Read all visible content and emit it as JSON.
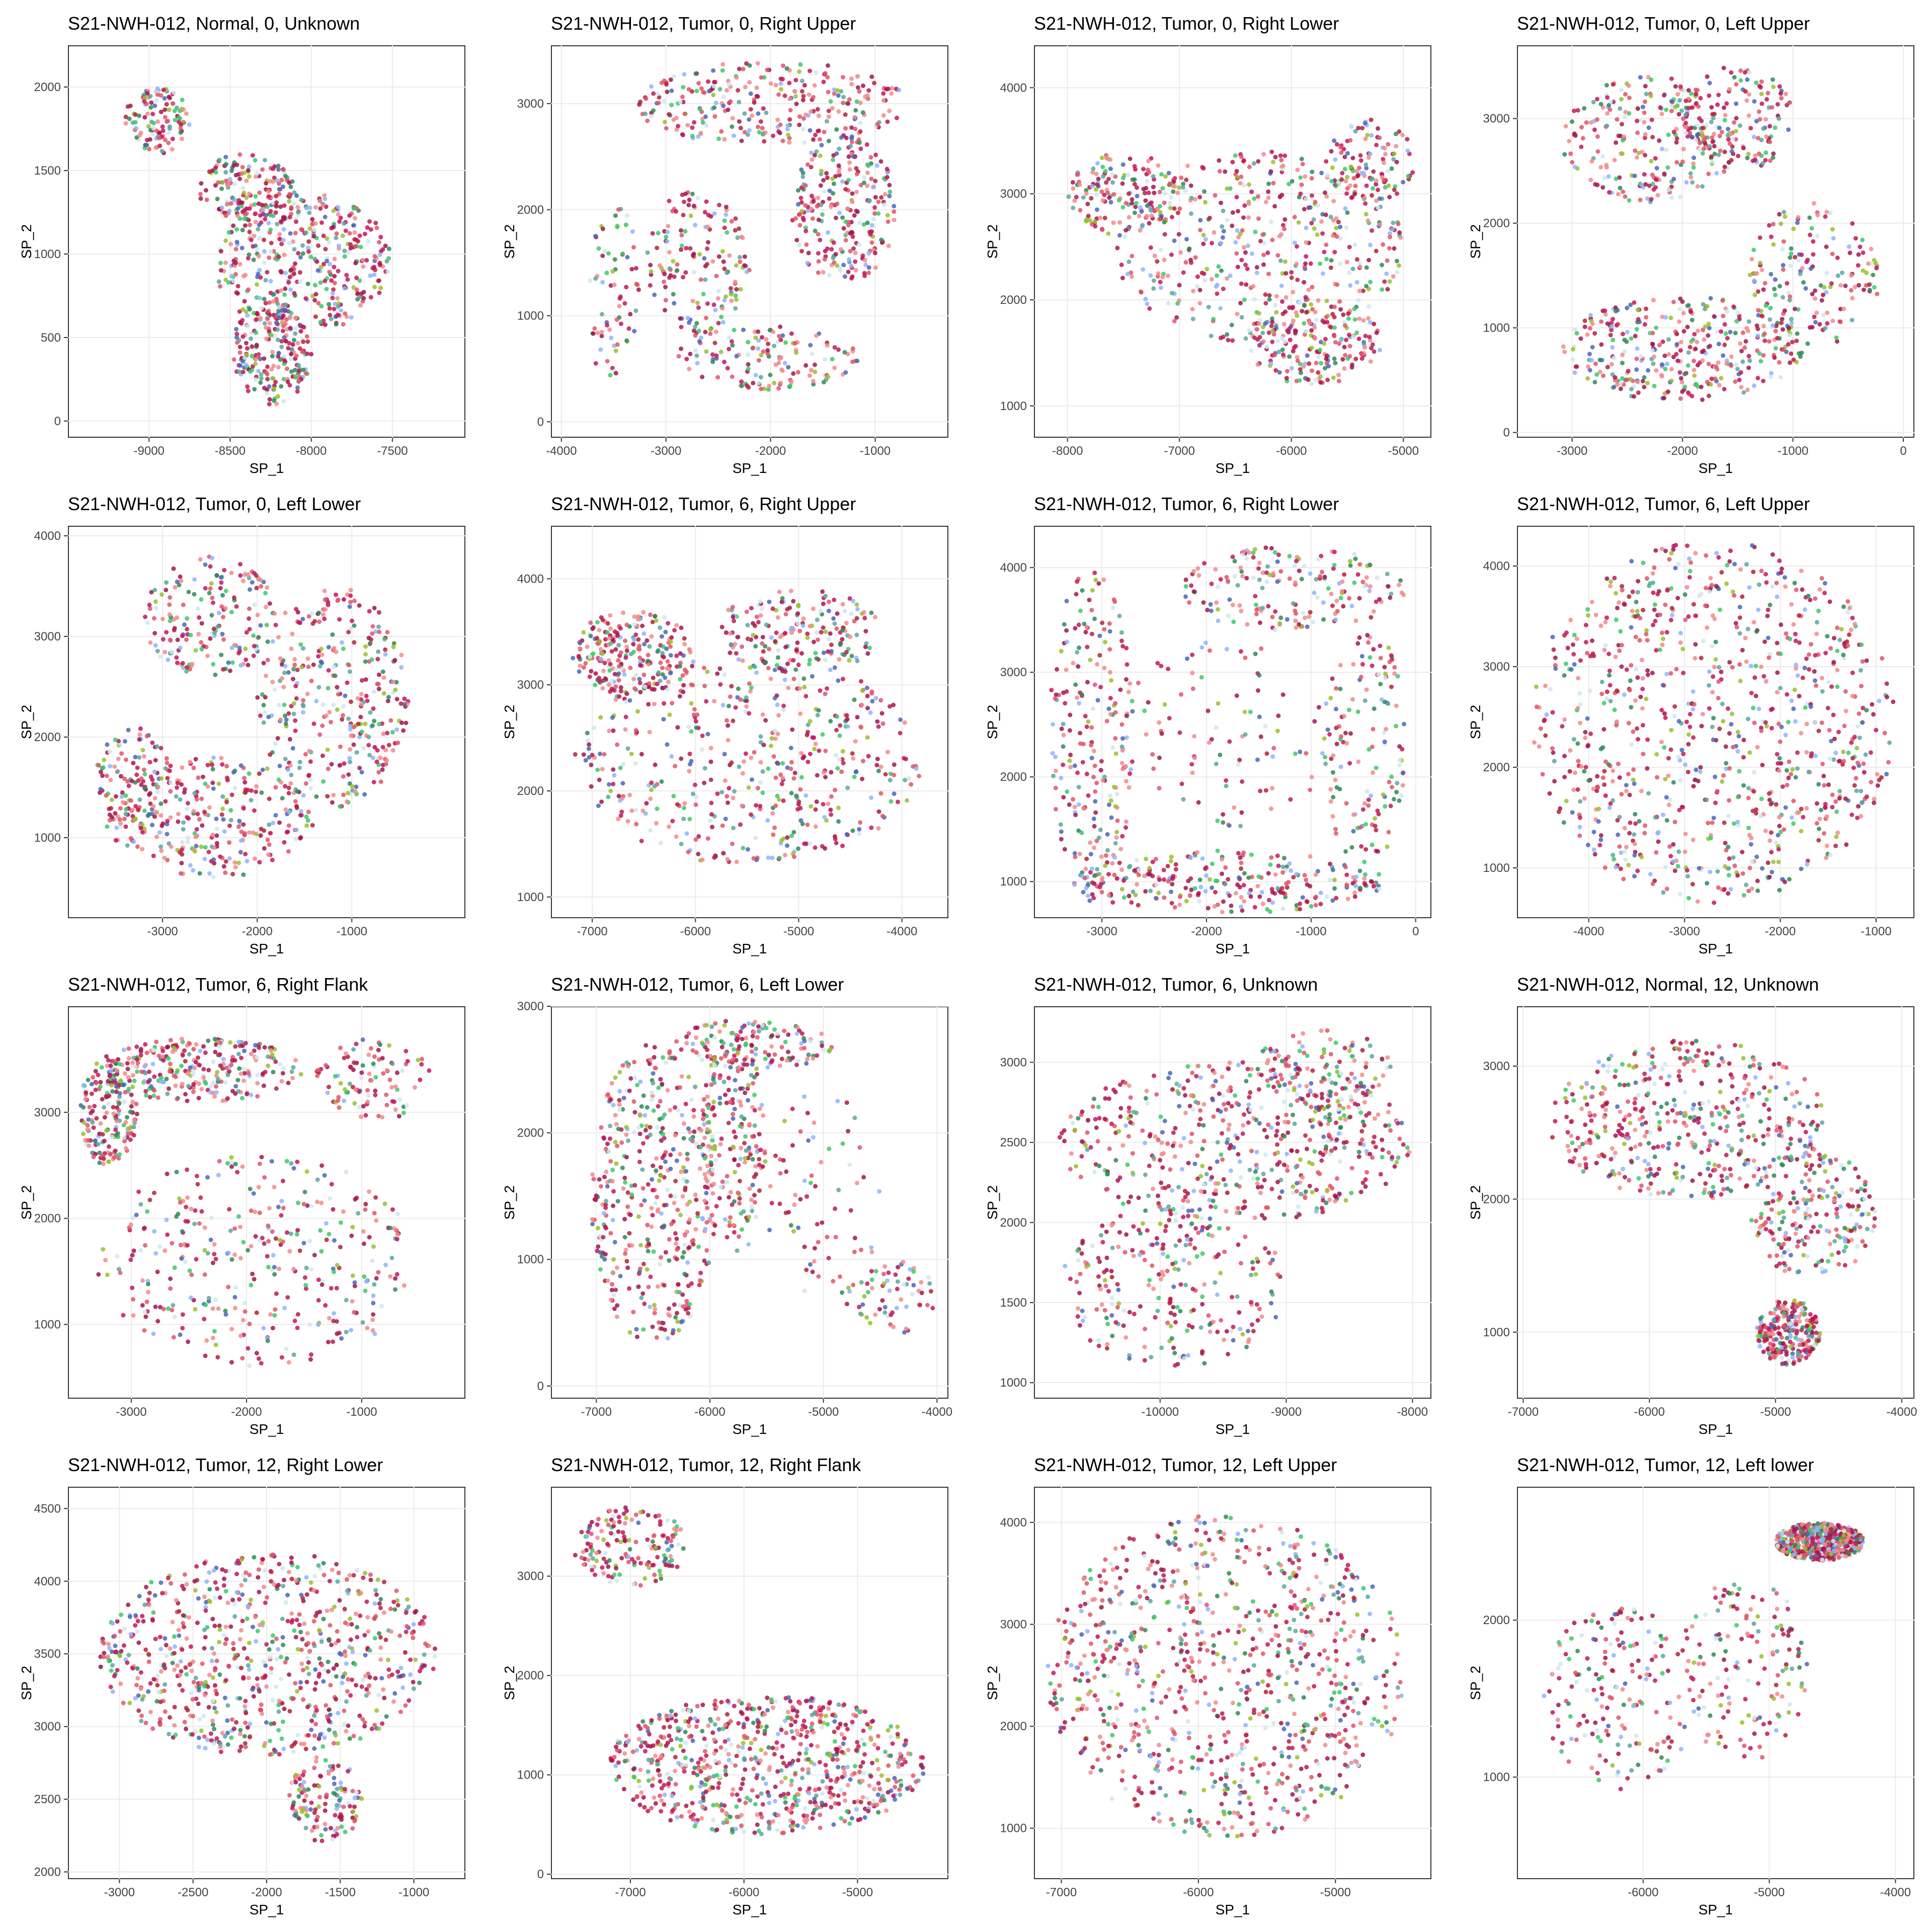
{
  "figure": {
    "background": "#ffffff",
    "palette": [
      "#a3154e",
      "#c2185b",
      "#e05568",
      "#f28b8b",
      "#5aa7a0",
      "#2e8b57",
      "#3cc96a",
      "#8fb4ff",
      "#4a67b8",
      "#cfe8ef",
      "#9bbf2a",
      "#b3223c"
    ]
  },
  "chart_data": [
    {
      "type": "scatter",
      "title": "S21-NWH-012, Normal, 0, Unknown",
      "xlabel": "SP_1",
      "ylabel": "SP_2",
      "xlim": [
        -9500,
        -7050
      ],
      "ylim": [
        -100,
        2250
      ],
      "xticks": [
        -9000,
        -8500,
        -8000,
        -7500
      ],
      "yticks": [
        0,
        500,
        1000,
        1500,
        2000
      ],
      "xtick_labels": [
        "-9000",
        "-8500",
        "-8000",
        "-7500"
      ],
      "ytick_labels": [
        "0",
        "500",
        "1000",
        "1500",
        "2000"
      ],
      "grid": true,
      "regions": [
        {
          "x": -8950,
          "y": 1800,
          "rx": 200,
          "ry": 200,
          "w": 1
        },
        {
          "x": -8050,
          "y": 950,
          "rx": 550,
          "ry": 420,
          "w": 4
        },
        {
          "x": -8250,
          "y": 400,
          "rx": 250,
          "ry": 300,
          "w": 2
        },
        {
          "x": -8400,
          "y": 1400,
          "rx": 300,
          "ry": 200,
          "w": 1.5
        }
      ]
    },
    {
      "type": "scatter",
      "title": "S21-NWH-012, Tumor, 0, Right Upper",
      "xlabel": "SP_1",
      "ylabel": "SP_2",
      "xlim": [
        -4100,
        -300
      ],
      "ylim": [
        -150,
        3550
      ],
      "xticks": [
        -4000,
        -3000,
        -2000,
        -1000
      ],
      "yticks": [
        0,
        1000,
        2000,
        3000
      ],
      "xtick_labels": [
        "-4000",
        "-3000",
        "-2000",
        "-1000"
      ],
      "ytick_labels": [
        "0",
        "1000",
        "2000",
        "3000"
      ],
      "grid": true,
      "regions": [
        {
          "x": -2000,
          "y": 3000,
          "rx": 1300,
          "ry": 400,
          "w": 4
        },
        {
          "x": -1300,
          "y": 2000,
          "rx": 500,
          "ry": 700,
          "w": 3
        },
        {
          "x": -2700,
          "y": 1500,
          "rx": 500,
          "ry": 700,
          "w": 2
        },
        {
          "x": -2000,
          "y": 600,
          "rx": 900,
          "ry": 300,
          "w": 2
        },
        {
          "x": -3500,
          "y": 1200,
          "rx": 250,
          "ry": 900,
          "w": 1
        }
      ]
    },
    {
      "type": "scatter",
      "title": "S21-NWH-012, Tumor, 0, Right Lower",
      "xlabel": "SP_1",
      "ylabel": "SP_2",
      "xlim": [
        -8300,
        -4750
      ],
      "ylim": [
        700,
        4400
      ],
      "xticks": [
        -8000,
        -7000,
        -6000,
        -5000
      ],
      "yticks": [
        1000,
        2000,
        3000,
        4000
      ],
      "xtick_labels": [
        "-8000",
        "-7000",
        "-6000",
        "-5000"
      ],
      "ytick_labels": [
        "1000",
        "2000",
        "3000",
        "4000"
      ],
      "grid": true,
      "regions": [
        {
          "x": -6300,
          "y": 2500,
          "rx": 1300,
          "ry": 900,
          "w": 5
        },
        {
          "x": -7500,
          "y": 3000,
          "rx": 500,
          "ry": 400,
          "w": 1.5
        },
        {
          "x": -5800,
          "y": 1600,
          "rx": 600,
          "ry": 400,
          "w": 2
        },
        {
          "x": -5300,
          "y": 3300,
          "rx": 400,
          "ry": 400,
          "w": 1.5
        }
      ]
    },
    {
      "type": "scatter",
      "title": "S21-NWH-012, Tumor, 0, Left Upper",
      "xlabel": "SP_1",
      "ylabel": "SP_2",
      "xlim": [
        -3500,
        100
      ],
      "ylim": [
        -50,
        3700
      ],
      "xticks": [
        -3000,
        -2000,
        -1000,
        0
      ],
      "yticks": [
        0,
        1000,
        2000,
        3000
      ],
      "xtick_labels": [
        "-3000",
        "-2000",
        "-1000",
        "0"
      ],
      "ytick_labels": [
        "0",
        "1000",
        "2000",
        "3000"
      ],
      "grid": true,
      "regions": [
        {
          "x": -2000,
          "y": 800,
          "rx": 1100,
          "ry": 500,
          "w": 4
        },
        {
          "x": -2300,
          "y": 2800,
          "rx": 800,
          "ry": 600,
          "w": 2.5
        },
        {
          "x": -800,
          "y": 1500,
          "rx": 600,
          "ry": 700,
          "w": 2
        },
        {
          "x": -1500,
          "y": 3000,
          "rx": 500,
          "ry": 500,
          "w": 1.5
        }
      ]
    },
    {
      "type": "scatter",
      "title": "S21-NWH-012, Tumor, 0, Left Lower",
      "xlabel": "SP_1",
      "ylabel": "SP_2",
      "xlim": [
        -4000,
        200
      ],
      "ylim": [
        200,
        4100
      ],
      "xticks": [
        -3000,
        -2000,
        -1000
      ],
      "yticks": [
        1000,
        2000,
        3000,
        4000
      ],
      "xtick_labels": [
        "-3000",
        "-2000",
        "-1000"
      ],
      "ytick_labels": [
        "1000",
        "2000",
        "3000",
        "4000"
      ],
      "grid": true,
      "regions": [
        {
          "x": -1200,
          "y": 2400,
          "rx": 800,
          "ry": 1100,
          "w": 5
        },
        {
          "x": -2500,
          "y": 3200,
          "rx": 700,
          "ry": 600,
          "w": 3
        },
        {
          "x": -2500,
          "y": 1200,
          "rx": 1100,
          "ry": 600,
          "w": 4
        },
        {
          "x": -3300,
          "y": 1600,
          "rx": 400,
          "ry": 500,
          "w": 1.5
        }
      ]
    },
    {
      "type": "scatter",
      "title": "S21-NWH-012, Tumor, 6, Right Upper",
      "xlabel": "SP_1",
      "ylabel": "SP_2",
      "xlim": [
        -7400,
        -3550
      ],
      "ylim": [
        800,
        4500
      ],
      "xticks": [
        -7000,
        -6000,
        -5000,
        -4000
      ],
      "yticks": [
        1000,
        2000,
        3000,
        4000
      ],
      "xtick_labels": [
        "-7000",
        "-6000",
        "-5000",
        "-4000"
      ],
      "ytick_labels": [
        "1000",
        "2000",
        "3000",
        "4000"
      ],
      "grid": true,
      "regions": [
        {
          "x": -5500,
          "y": 2300,
          "rx": 1700,
          "ry": 1000,
          "w": 4
        },
        {
          "x": -6600,
          "y": 3300,
          "rx": 600,
          "ry": 400,
          "w": 2
        },
        {
          "x": -5000,
          "y": 3500,
          "rx": 800,
          "ry": 400,
          "w": 1.5
        }
      ]
    },
    {
      "type": "scatter",
      "title": "S21-NWH-012, Tumor, 6, Right Lower",
      "xlabel": "SP_1",
      "ylabel": "SP_2",
      "xlim": [
        -3650,
        150
      ],
      "ylim": [
        650,
        4400
      ],
      "xticks": [
        -3000,
        -2000,
        -1000,
        0
      ],
      "yticks": [
        1000,
        2000,
        3000,
        4000
      ],
      "xtick_labels": [
        "-3000",
        "-2000",
        "-1000",
        "0"
      ],
      "ytick_labels": [
        "1000",
        "2000",
        "3000",
        "4000"
      ],
      "grid": true,
      "regions": [
        {
          "x": -3100,
          "y": 2400,
          "rx": 400,
          "ry": 1600,
          "w": 3
        },
        {
          "x": -1800,
          "y": 1000,
          "rx": 1500,
          "ry": 300,
          "w": 3
        },
        {
          "x": -1200,
          "y": 3800,
          "rx": 1100,
          "ry": 400,
          "w": 2.5
        },
        {
          "x": -500,
          "y": 2300,
          "rx": 400,
          "ry": 1200,
          "w": 2
        },
        {
          "x": -1800,
          "y": 2400,
          "rx": 1100,
          "ry": 900,
          "w": 1
        }
      ]
    },
    {
      "type": "scatter",
      "title": "S21-NWH-012, Tumor, 6, Left Upper",
      "xlabel": "SP_1",
      "ylabel": "SP_2",
      "xlim": [
        -4750,
        -600
      ],
      "ylim": [
        500,
        4400
      ],
      "xticks": [
        -4000,
        -3000,
        -2000,
        -1000
      ],
      "yticks": [
        1000,
        2000,
        3000,
        4000
      ],
      "xtick_labels": [
        "-4000",
        "-3000",
        "-2000",
        "-1000"
      ],
      "ytick_labels": [
        "1000",
        "2000",
        "3000",
        "4000"
      ],
      "grid": true,
      "regions": [
        {
          "x": -2700,
          "y": 2450,
          "rx": 1900,
          "ry": 1800,
          "w": 6
        }
      ]
    },
    {
      "type": "scatter",
      "title": "S21-NWH-012, Tumor, 6, Right Flank",
      "xlabel": "SP_1",
      "ylabel": "SP_2",
      "xlim": [
        -3550,
        -100
      ],
      "ylim": [
        300,
        4000
      ],
      "xticks": [
        -3000,
        -2000,
        -1000
      ],
      "yticks": [
        1000,
        2000,
        3000
      ],
      "xtick_labels": [
        "-3000",
        "-2000",
        "-1000"
      ],
      "ytick_labels": [
        "1000",
        "2000",
        "3000"
      ],
      "grid": true,
      "regions": [
        {
          "x": -2400,
          "y": 3400,
          "rx": 900,
          "ry": 300,
          "w": 3
        },
        {
          "x": -3200,
          "y": 3000,
          "rx": 250,
          "ry": 500,
          "w": 2
        },
        {
          "x": -1900,
          "y": 1600,
          "rx": 1400,
          "ry": 1000,
          "w": 4
        },
        {
          "x": -900,
          "y": 3300,
          "rx": 500,
          "ry": 400,
          "w": 1
        }
      ]
    },
    {
      "type": "scatter",
      "title": "S21-NWH-012, Tumor, 6, Left Lower",
      "xlabel": "SP_1",
      "ylabel": "SP_2",
      "xlim": [
        -7400,
        -3900
      ],
      "ylim": [
        -100,
        3000
      ],
      "xticks": [
        -7000,
        -6000,
        -5000,
        -4000
      ],
      "yticks": [
        0,
        1000,
        2000,
        3000
      ],
      "xtick_labels": [
        "-7000",
        "-6000",
        "-5000",
        "-4000"
      ],
      "ytick_labels": [
        "0",
        "1000",
        "2000",
        "3000"
      ],
      "grid": true,
      "regions": [
        {
          "x": -6500,
          "y": 1500,
          "rx": 550,
          "ry": 1200,
          "w": 6
        },
        {
          "x": -5800,
          "y": 1900,
          "rx": 300,
          "ry": 900,
          "w": 3
        },
        {
          "x": -5600,
          "y": 2700,
          "rx": 700,
          "ry": 200,
          "w": 2
        },
        {
          "x": -5000,
          "y": 1500,
          "rx": 500,
          "ry": 900,
          "w": 1
        },
        {
          "x": -4400,
          "y": 700,
          "rx": 400,
          "ry": 300,
          "w": 0.8
        }
      ]
    },
    {
      "type": "scatter",
      "title": "S21-NWH-012, Tumor, 6, Unknown",
      "xlabel": "SP_1",
      "ylabel": "SP_2",
      "xlim": [
        -11000,
        -7850
      ],
      "ylim": [
        900,
        3350
      ],
      "xticks": [
        -10000,
        -9000,
        -8000
      ],
      "yticks": [
        1000,
        1500,
        2000,
        2500,
        3000
      ],
      "xtick_labels": [
        "-10000",
        "-9000",
        "-8000"
      ],
      "ytick_labels": [
        "1000",
        "1500",
        "2000",
        "2500",
        "3000"
      ],
      "grid": true,
      "regions": [
        {
          "x": -9400,
          "y": 2500,
          "rx": 1400,
          "ry": 500,
          "w": 5
        },
        {
          "x": -9900,
          "y": 1600,
          "rx": 900,
          "ry": 500,
          "w": 3
        },
        {
          "x": -8700,
          "y": 2950,
          "rx": 600,
          "ry": 250,
          "w": 1.5
        }
      ]
    },
    {
      "type": "scatter",
      "title": "S21-NWH-012, Normal, 12, Unknown",
      "xlabel": "SP_1",
      "ylabel": "SP_2",
      "xlim": [
        -7050,
        -3900
      ],
      "ylim": [
        500,
        3450
      ],
      "xticks": [
        -7000,
        -6000,
        -5000,
        -4000
      ],
      "yticks": [
        1000,
        2000,
        3000
      ],
      "xtick_labels": [
        "-7000",
        "-6000",
        "-5000",
        "-4000"
      ],
      "ytick_labels": [
        "1000",
        "2000",
        "3000"
      ],
      "grid": true,
      "regions": [
        {
          "x": -5700,
          "y": 2600,
          "rx": 1100,
          "ry": 600,
          "w": 4
        },
        {
          "x": -4700,
          "y": 1900,
          "rx": 500,
          "ry": 500,
          "w": 2
        },
        {
          "x": -4900,
          "y": 1000,
          "rx": 250,
          "ry": 250,
          "w": 2
        }
      ]
    },
    {
      "type": "scatter",
      "title": "S21-NWH-012, Tumor, 12, Right Lower",
      "xlabel": "SP_1",
      "ylabel": "SP_2",
      "xlim": [
        -3350,
        -650
      ],
      "ylim": [
        1950,
        4650
      ],
      "xticks": [
        -3000,
        -2500,
        -2000,
        -1500,
        -1000
      ],
      "yticks": [
        2000,
        2500,
        3000,
        3500,
        4000,
        4500
      ],
      "xtick_labels": [
        "-3000",
        "-2500",
        "-2000",
        "-1500",
        "-1000"
      ],
      "ytick_labels": [
        "2000",
        "2500",
        "3000",
        "3500",
        "4000",
        "4500"
      ],
      "grid": true,
      "regions": [
        {
          "x": -2000,
          "y": 3500,
          "rx": 1150,
          "ry": 700,
          "w": 5
        },
        {
          "x": -1600,
          "y": 2500,
          "rx": 250,
          "ry": 300,
          "w": 0.8
        }
      ]
    },
    {
      "type": "scatter",
      "title": "S21-NWH-012, Tumor, 12, Right Flank",
      "xlabel": "SP_1",
      "ylabel": "SP_2",
      "xlim": [
        -7700,
        -4200
      ],
      "ylim": [
        -50,
        3900
      ],
      "xticks": [
        -7000,
        -6000,
        -5000
      ],
      "yticks": [
        0,
        1000,
        2000,
        3000
      ],
      "xtick_labels": [
        "-7000",
        "-6000",
        "-5000"
      ],
      "ytick_labels": [
        "0",
        "1000",
        "2000",
        "3000"
      ],
      "grid": true,
      "regions": [
        {
          "x": -5800,
          "y": 1100,
          "rx": 1400,
          "ry": 700,
          "w": 5
        },
        {
          "x": -7000,
          "y": 3300,
          "rx": 500,
          "ry": 400,
          "w": 1.2
        }
      ]
    },
    {
      "type": "scatter",
      "title": "S21-NWH-012, Tumor, 12, Left Upper",
      "xlabel": "SP_1",
      "ylabel": "SP_2",
      "xlim": [
        -7200,
        -4300
      ],
      "ylim": [
        500,
        4350
      ],
      "xticks": [
        -7000,
        -6000,
        -5000
      ],
      "yticks": [
        1000,
        2000,
        3000,
        4000
      ],
      "xtick_labels": [
        "-7000",
        "-6000",
        "-5000"
      ],
      "ytick_labels": [
        "1000",
        "2000",
        "3000",
        "4000"
      ],
      "grid": true,
      "regions": [
        {
          "x": -5800,
          "y": 2500,
          "rx": 1300,
          "ry": 1600,
          "w": 3
        }
      ]
    },
    {
      "type": "scatter",
      "title": "S21-NWH-012, Tumor, 12, Left lower",
      "xlabel": "SP_1",
      "ylabel": "SP_2",
      "xlim": [
        -7000,
        -3850
      ],
      "ylim": [
        350,
        2850
      ],
      "xticks": [
        -6000,
        -5000,
        -4000
      ],
      "yticks": [
        1000,
        2000
      ],
      "xtick_labels": [
        "-6000",
        "-5000",
        "-4000"
      ],
      "ytick_labels": [
        "1000",
        "2000"
      ],
      "grid": true,
      "regions": [
        {
          "x": -4600,
          "y": 2500,
          "rx": 350,
          "ry": 120,
          "w": 3
        },
        {
          "x": -6200,
          "y": 1500,
          "rx": 600,
          "ry": 600,
          "w": 1
        },
        {
          "x": -5200,
          "y": 1700,
          "rx": 500,
          "ry": 600,
          "w": 0.7
        }
      ]
    }
  ]
}
